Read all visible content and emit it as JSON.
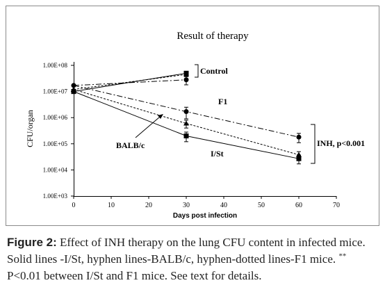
{
  "chart_data": {
    "type": "line",
    "title": "Result of therapy",
    "xlabel": "Days post infection",
    "ylabel": "CFU/organ",
    "xlim": [
      0,
      70
    ],
    "xticks": [
      0,
      10,
      20,
      30,
      40,
      50,
      60,
      70
    ],
    "yscale": "log",
    "ylim": [
      1000,
      100000000
    ],
    "yticks": [
      {
        "value": 100000000,
        "label": "1.00E+08"
      },
      {
        "value": 10000000,
        "label": "1.00E+07"
      },
      {
        "value": 1000000,
        "label": "1.00E+06"
      },
      {
        "value": 100000,
        "label": "1.00E+05"
      },
      {
        "value": 10000,
        "label": "1.00E+04"
      },
      {
        "value": 1000,
        "label": "1.00E+03"
      }
    ],
    "grid": false,
    "series": [
      {
        "name": "I/St",
        "style": "solid",
        "marker": "square",
        "x": [
          0,
          30,
          60
        ],
        "y": [
          10000000,
          200000,
          27000
        ],
        "err": [
          0,
          80000,
          10000
        ]
      },
      {
        "name": "BALB/c",
        "style": "dashed",
        "marker": "triangle",
        "x": [
          0,
          30,
          60
        ],
        "y": [
          12000000,
          600000,
          38000
        ],
        "err": [
          0,
          200000,
          12000
        ]
      },
      {
        "name": "F1",
        "style": "dashdot",
        "marker": "circle",
        "x": [
          0,
          30,
          60
        ],
        "y": [
          17000000,
          1700000,
          180000
        ],
        "err": [
          0,
          800000,
          70000
        ]
      },
      {
        "name": "",
        "style": "solid",
        "marker": "square",
        "x": [
          0,
          30
        ],
        "y": [
          10000000,
          50000000
        ],
        "err": [
          0,
          8000000
        ]
      },
      {
        "name": "",
        "style": "dashed",
        "marker": "triangle",
        "x": [
          0,
          30
        ],
        "y": [
          12000000,
          45000000
        ],
        "err": [
          0,
          8000000
        ]
      },
      {
        "name": "",
        "style": "dashdot",
        "marker": "circle",
        "x": [
          0,
          30
        ],
        "y": [
          17000000,
          28000000
        ],
        "err": [
          0,
          10000000
        ]
      }
    ],
    "annotations": {
      "control": "Control",
      "f1": "F1",
      "balb": "BALB/c",
      "ist": "I/St",
      "inh": "INH, p<0.001"
    }
  },
  "caption": {
    "label": "Figure 2:",
    "text": " Effect of INH therapy on the lung CFU content in infected mice. Solid lines -I/St, hyphen lines-BALB/c, hyphen-dotted lines-F1 mice. ",
    "sup": "**",
    "text2": " P<0.01 between I/St and F1 mice. See text for details."
  }
}
